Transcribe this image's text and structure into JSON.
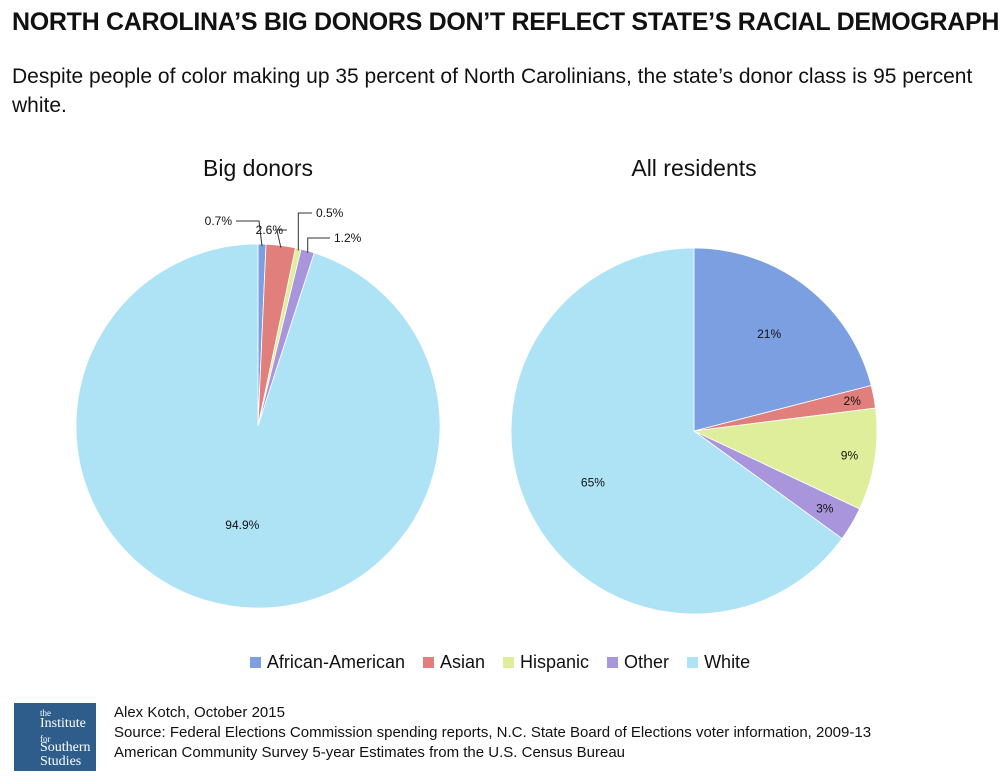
{
  "headline": "NORTH CAROLINA’S BIG DONORS DON’T REFLECT STATE’S RACIAL DEMOGRAPHICS",
  "subhead": "Despite people of color making up 35 percent of North Carolinians, the state’s donor class is 95 percent white.",
  "chart_data": [
    {
      "type": "pie",
      "title": "Big donors",
      "categories": [
        "African-American",
        "Asian",
        "Hispanic",
        "Other",
        "White"
      ],
      "values": [
        0.7,
        2.6,
        0.5,
        1.2,
        94.9
      ],
      "labels": [
        "0.7%",
        "2.6%",
        "0.5%",
        "1.2%",
        "94.9%"
      ],
      "colors": [
        "#7b9fe0",
        "#e07f7c",
        "#dfee9b",
        "#a995dc",
        "#aee3f5"
      ]
    },
    {
      "type": "pie",
      "title": "All residents",
      "categories": [
        "African-American",
        "Asian",
        "Hispanic",
        "Other",
        "White"
      ],
      "values": [
        21,
        2,
        9,
        3,
        65
      ],
      "labels": [
        "21%",
        "2%",
        "9%",
        "3%",
        "65%"
      ],
      "colors": [
        "#7b9fe0",
        "#e07f7c",
        "#dfee9b",
        "#a995dc",
        "#aee3f5"
      ]
    }
  ],
  "legend": [
    {
      "label": "African-American",
      "color": "#7b9fe0"
    },
    {
      "label": "Asian",
      "color": "#e07f7c"
    },
    {
      "label": "Hispanic",
      "color": "#dfee9b"
    },
    {
      "label": "Other",
      "color": "#a995dc"
    },
    {
      "label": "White",
      "color": "#aee3f5"
    }
  ],
  "logo": {
    "line1": "the",
    "line2": "Institute",
    "line3": "for",
    "line4": "Southern",
    "line5": "Studies"
  },
  "credits": {
    "author": "Alex Kotch, October 2015",
    "source1": "Source: Federal Elections Commission spending reports, N.C. State Board of Elections voter information, 2009-13",
    "source2": "American Community Survey 5-year Estimates from the U.S. Census Bureau"
  }
}
